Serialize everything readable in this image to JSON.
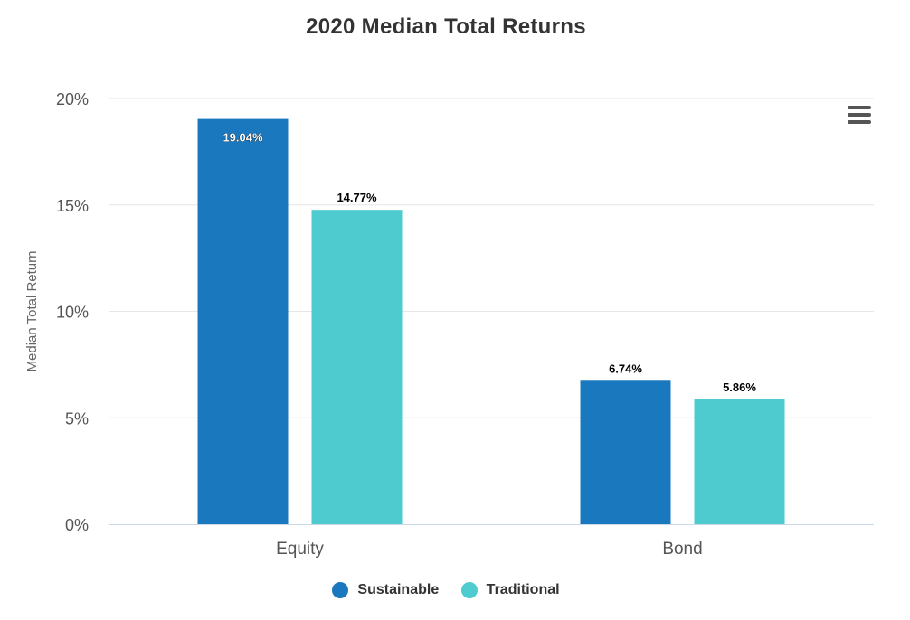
{
  "chart_data": {
    "type": "bar",
    "title": "2020 Median Total Returns",
    "xlabel": "",
    "ylabel": "Median Total Return",
    "categories": [
      "Equity",
      "Bond"
    ],
    "series": [
      {
        "name": "Sustainable",
        "values": [
          19.04,
          6.74
        ],
        "labels": [
          "19.04%",
          "6.74%"
        ],
        "color": "#1a78bf"
      },
      {
        "name": "Traditional",
        "values": [
          14.77,
          5.86
        ],
        "labels": [
          "14.77%",
          "5.86%"
        ],
        "color": "#4ecbce"
      }
    ],
    "ylim": [
      0,
      20
    ],
    "yticks": [
      "0%",
      "5%",
      "10%",
      "15%",
      "20%"
    ],
    "ytick_values": [
      0,
      5,
      10,
      15,
      20
    ],
    "grid": true,
    "legend": "bottom-center"
  },
  "menu": {
    "icon": "hamburger-menu-icon"
  }
}
